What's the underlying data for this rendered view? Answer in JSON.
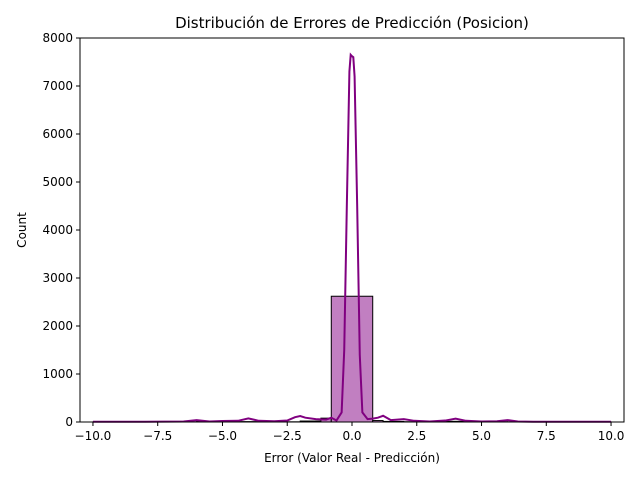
{
  "chart_data": {
    "type": "bar",
    "title": "Distribución de Errores de Predicción (Posicion)",
    "xlabel": "Error (Valor Real - Predicción)",
    "ylabel": "Count",
    "xlim": [
      -10.5,
      10.5
    ],
    "ylim": [
      0,
      8000
    ],
    "xticks": [
      -10.0,
      -7.5,
      -5.0,
      -2.5,
      0.0,
      2.5,
      5.0,
      7.5,
      10.0
    ],
    "xtick_labels": [
      "−10.0",
      "−7.5",
      "−5.0",
      "−2.5",
      "0.0",
      "2.5",
      "5.0",
      "7.5",
      "10.0"
    ],
    "yticks": [
      0,
      1000,
      2000,
      3000,
      4000,
      5000,
      6000,
      7000,
      8000
    ],
    "ytick_labels": [
      "0",
      "1000",
      "2000",
      "3000",
      "4000",
      "5000",
      "6000",
      "7000",
      "8000"
    ],
    "grid": false,
    "colors": {
      "bar_fill": "#c17fc1",
      "bar_edge": "#000000",
      "kde_line": "#800080"
    },
    "histogram": {
      "bin_edges": [
        -10.0,
        -9.2,
        -8.4,
        -7.6,
        -6.8,
        -6.0,
        -5.2,
        -4.4,
        -3.6,
        -2.8,
        -2.0,
        -1.2,
        -0.8,
        0.8,
        1.2,
        2.0,
        2.8,
        3.6,
        4.4,
        5.2,
        6.0,
        6.8,
        7.6,
        8.4,
        9.2,
        10.0
      ],
      "counts": [
        2,
        2,
        2,
        2,
        4,
        12,
        20,
        8,
        4,
        4,
        20,
        80,
        2620,
        30,
        12,
        6,
        6,
        14,
        16,
        6,
        4,
        2,
        2,
        2,
        2
      ]
    },
    "kde": {
      "x": [
        -10.0,
        -8.0,
        -6.5,
        -6.0,
        -5.5,
        -5.0,
        -4.4,
        -4.0,
        -3.6,
        -3.0,
        -2.5,
        -2.2,
        -2.0,
        -1.8,
        -1.4,
        -1.0,
        -0.8,
        -0.6,
        -0.4,
        -0.3,
        -0.2,
        -0.1,
        -0.05,
        0.0,
        0.05,
        0.1,
        0.2,
        0.3,
        0.4,
        0.6,
        0.8,
        1.0,
        1.2,
        1.5,
        2.0,
        2.4,
        3.0,
        3.6,
        4.0,
        4.4,
        5.0,
        5.6,
        6.0,
        6.4,
        7.0,
        8.0,
        9.0,
        10.0
      ],
      "y": [
        5,
        5,
        10,
        40,
        10,
        20,
        25,
        75,
        25,
        15,
        30,
        100,
        125,
        90,
        60,
        50,
        90,
        30,
        200,
        1500,
        4500,
        7300,
        7650,
        7620,
        7600,
        7200,
        4500,
        1400,
        200,
        60,
        70,
        90,
        130,
        40,
        60,
        25,
        10,
        30,
        70,
        25,
        10,
        15,
        40,
        10,
        5,
        5,
        5,
        5
      ]
    }
  }
}
